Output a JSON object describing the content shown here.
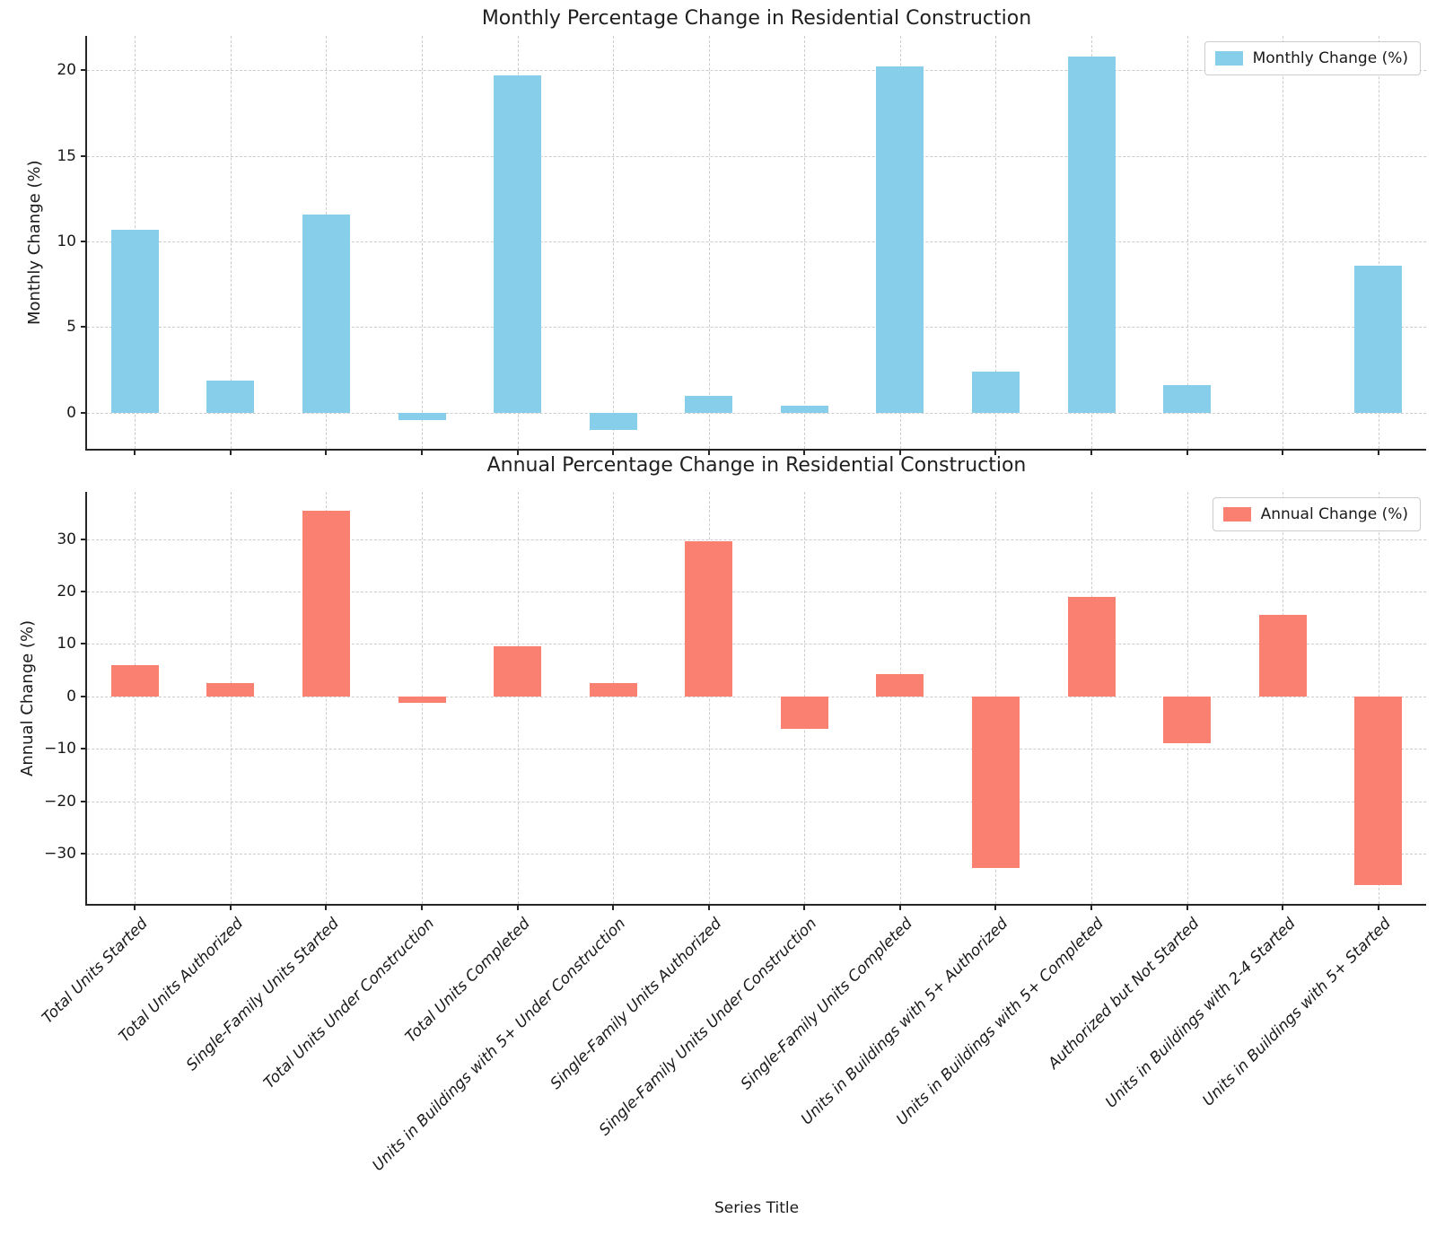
{
  "xlabel": "Series Title",
  "categories": [
    "Total Units Started",
    "Total Units Authorized",
    "Single-Family Units Started",
    "Total Units Under Construction",
    "Total Units Completed",
    "Units in Buildings with 5+ Under Construction",
    "Single-Family Units Authorized",
    "Single-Family Units Under Construction",
    "Single-Family Units Completed",
    "Units in Buildings with 5+ Authorized",
    "Units in Buildings with 5+ Completed",
    "Authorized but Not Started",
    "Units in Buildings with 2-4 Started",
    "Units in Buildings with 5+ Started"
  ],
  "chart_data": [
    {
      "type": "bar",
      "title": "Monthly Percentage Change in Residential Construction",
      "ylabel": "Monthly Change (%)",
      "legend": "Monthly Change (%)",
      "legend_position": "upper right",
      "color": "#87CEEB",
      "grid": "dashed",
      "values": [
        10.7,
        1.9,
        11.6,
        -0.4,
        19.7,
        -1.0,
        1.0,
        0.4,
        20.2,
        2.4,
        20.8,
        1.6,
        0.0,
        8.6
      ],
      "yticks": [
        0,
        5,
        10,
        15,
        20
      ],
      "ylim": [
        -2.1,
        22.0
      ],
      "show_x_tick_labels": false
    },
    {
      "type": "bar",
      "title": "Annual Percentage Change in Residential Construction",
      "ylabel": "Annual Change (%)",
      "legend": "Annual Change (%)",
      "legend_position": "upper right",
      "color": "#FA8072",
      "grid": "dashed",
      "values": [
        5.9,
        2.5,
        35.4,
        -1.2,
        9.6,
        2.5,
        29.5,
        -6.2,
        4.3,
        -32.7,
        18.9,
        -9.0,
        15.6,
        -36.0
      ],
      "yticks": [
        -30,
        -20,
        -10,
        0,
        10,
        20,
        30
      ],
      "ylim": [
        -39.6,
        39.0
      ],
      "show_x_tick_labels": true
    }
  ]
}
